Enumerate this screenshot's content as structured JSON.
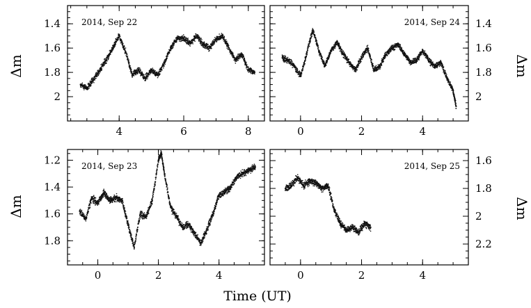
{
  "chart_data": [
    {
      "type": "scatter",
      "panel": "top-left",
      "label": "2014, Sep 22",
      "ylabel": "Δm",
      "xlim": [
        2.4,
        8.5
      ],
      "ylim": [
        2.2,
        1.25
      ],
      "y_inverted": true,
      "xticks": [
        4,
        6,
        8
      ],
      "yticks": [
        1.4,
        1.6,
        1.8,
        2
      ],
      "ytick_side": "left",
      "x": [
        2.8,
        3.0,
        3.2,
        3.4,
        3.6,
        3.8,
        4.0,
        4.2,
        4.4,
        4.6,
        4.8,
        5.0,
        5.2,
        5.4,
        5.6,
        5.8,
        6.0,
        6.2,
        6.4,
        6.6,
        6.8,
        7.0,
        7.2,
        7.4,
        7.6,
        7.8,
        8.0,
        8.2
      ],
      "y": [
        1.9,
        1.93,
        1.86,
        1.78,
        1.7,
        1.6,
        1.5,
        1.63,
        1.82,
        1.78,
        1.85,
        1.78,
        1.82,
        1.72,
        1.6,
        1.52,
        1.52,
        1.56,
        1.5,
        1.57,
        1.6,
        1.53,
        1.5,
        1.6,
        1.7,
        1.65,
        1.78,
        1.8
      ]
    },
    {
      "type": "scatter",
      "panel": "top-right",
      "label": "2014, Sep 24",
      "ylabel": "Δm",
      "xlim": [
        -1.0,
        5.5
      ],
      "ylim": [
        2.2,
        1.25
      ],
      "y_inverted": true,
      "xticks": [
        0,
        2,
        4
      ],
      "yticks": [
        1.4,
        1.6,
        1.8,
        2
      ],
      "ytick_side": "right",
      "x": [
        -0.6,
        -0.4,
        -0.2,
        0.0,
        0.2,
        0.4,
        0.6,
        0.8,
        1.0,
        1.2,
        1.4,
        1.6,
        1.8,
        2.0,
        2.2,
        2.4,
        2.6,
        2.8,
        3.0,
        3.2,
        3.4,
        3.6,
        3.8,
        4.0,
        4.2,
        4.4,
        4.6,
        4.8,
        5.0,
        5.1
      ],
      "y": [
        1.68,
        1.7,
        1.75,
        1.83,
        1.65,
        1.45,
        1.62,
        1.75,
        1.62,
        1.55,
        1.65,
        1.72,
        1.78,
        1.68,
        1.6,
        1.78,
        1.75,
        1.65,
        1.6,
        1.57,
        1.65,
        1.72,
        1.7,
        1.62,
        1.7,
        1.75,
        1.72,
        1.85,
        1.95,
        2.08
      ]
    },
    {
      "type": "scatter",
      "panel": "bottom-left",
      "label": "2014, Sep 23",
      "ylabel": "Δm",
      "xlim": [
        -1.0,
        5.5
      ],
      "ylim": [
        1.98,
        1.12
      ],
      "y_inverted": true,
      "xticks": [
        0,
        2,
        4
      ],
      "yticks": [
        1.2,
        1.4,
        1.6,
        1.8
      ],
      "ytick_side": "left",
      "x": [
        -0.6,
        -0.4,
        -0.2,
        0.0,
        0.2,
        0.4,
        0.6,
        0.8,
        1.0,
        1.2,
        1.4,
        1.6,
        1.8,
        2.0,
        2.1,
        2.2,
        2.4,
        2.6,
        2.8,
        3.0,
        3.2,
        3.4,
        3.6,
        3.8,
        4.0,
        4.2,
        4.4,
        4.6,
        4.8,
        5.0,
        5.2
      ],
      "y": [
        1.58,
        1.64,
        1.48,
        1.52,
        1.44,
        1.5,
        1.48,
        1.5,
        1.68,
        1.85,
        1.6,
        1.62,
        1.5,
        1.2,
        1.15,
        1.3,
        1.55,
        1.62,
        1.7,
        1.68,
        1.75,
        1.82,
        1.72,
        1.6,
        1.46,
        1.44,
        1.4,
        1.32,
        1.3,
        1.27,
        1.25
      ]
    },
    {
      "type": "scatter",
      "panel": "bottom-right",
      "label": "2014, Sep 25",
      "ylabel": "Δm",
      "xlim": [
        -1.0,
        5.5
      ],
      "ylim": [
        2.35,
        1.52
      ],
      "y_inverted": true,
      "xticks": [
        0,
        2,
        4
      ],
      "yticks": [
        1.6,
        1.8,
        2,
        2.2
      ],
      "ytick_side": "right",
      "x": [
        -0.5,
        -0.3,
        -0.1,
        0.1,
        0.3,
        0.5,
        0.7,
        0.9,
        1.1,
        1.3,
        1.5,
        1.7,
        1.9,
        2.1,
        2.3
      ],
      "y": [
        1.8,
        1.78,
        1.72,
        1.78,
        1.75,
        1.76,
        1.8,
        1.78,
        1.95,
        2.05,
        2.1,
        2.08,
        2.12,
        2.05,
        2.08
      ]
    }
  ],
  "xlabel": "Time (UT)"
}
